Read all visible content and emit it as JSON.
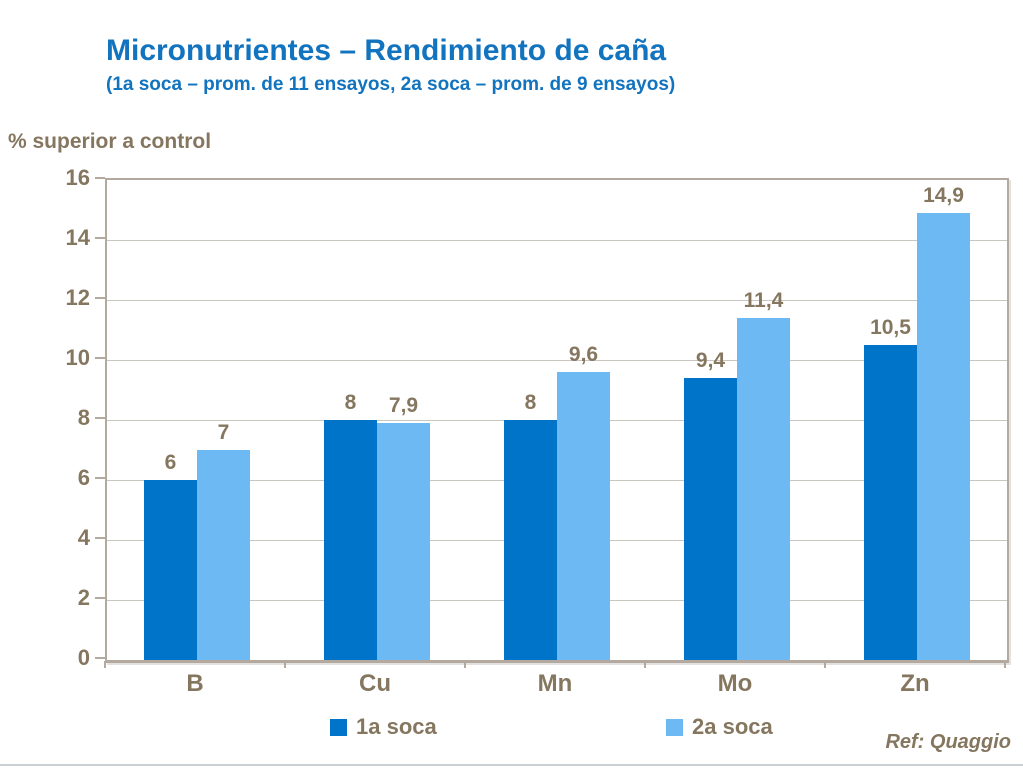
{
  "colors": {
    "title_blue": "#1273BE",
    "text_taupe": "#85765F",
    "gridline": "#C9C5BF",
    "frame": "#B3A99E",
    "series1_dark_blue": "#0074C8",
    "series2_light_blue": "#6CB9F4",
    "bottom_rule": "#CBD0D4"
  },
  "header": {
    "title": "Micronutrientes – Rendimiento de caña",
    "subtitle": "(1a soca – prom. de 11 ensayos, 2a soca – prom. de 9 ensayos)"
  },
  "footer": {
    "ref": "Ref: Quaggio"
  },
  "chart_data": {
    "type": "bar",
    "title": "Micronutrientes – Rendimiento de caña",
    "subtitle": "(1a soca – prom. de 11 ensayos, 2a soca – prom. de 9 ensayos)",
    "ylabel": "% superior a control",
    "xlabel": "",
    "categories": [
      "B",
      "Cu",
      "Mn",
      "Mo",
      "Zn"
    ],
    "series": [
      {
        "name": "1a soca",
        "color": "#0074C8",
        "values": [
          6,
          8,
          8,
          9.4,
          10.5
        ],
        "labels": [
          "6",
          "8",
          "8",
          "9,4",
          "10,5"
        ]
      },
      {
        "name": "2a soca",
        "color": "#6CB9F4",
        "values": [
          7,
          7.9,
          9.6,
          11.4,
          14.9
        ],
        "labels": [
          "7",
          "7,9",
          "9,6",
          "11,4",
          "14,9"
        ]
      }
    ],
    "ylim": [
      0,
      16
    ],
    "ytick_step": 2,
    "yticks": [
      "0",
      "2",
      "4",
      "6",
      "8",
      "10",
      "12",
      "14",
      "16"
    ],
    "grid": true,
    "legend_position": "bottom",
    "annotation": "Ref: Quaggio"
  }
}
